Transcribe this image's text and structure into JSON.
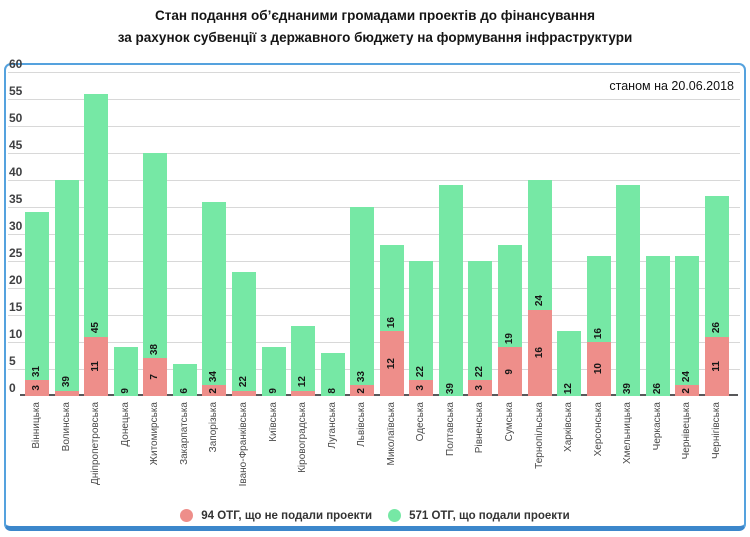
{
  "title": {
    "line1": "Стан подання об’єднаними громадами проектів до фінансування",
    "line2": "за рахунок субвенції з державного бюджету на формування інфраструктури"
  },
  "annotation": "станом на 20.06.2018",
  "colors": {
    "not_submitted": "#EE8E8A",
    "submitted": "#76E8A5",
    "frame_border": "#55A2DE",
    "frame_border_bottom": "#3C87CB",
    "gridline": "#D8D8D8",
    "axis_line": "#58585A"
  },
  "legend": [
    {
      "label": "94 ОТГ, що не подали проекти",
      "color": "#EE8E8A"
    },
    {
      "label": "571 ОТГ, що подали проекти",
      "color": "#76E8A5"
    }
  ],
  "chart_data": {
    "type": "bar",
    "stacked": true,
    "title": "Стан подання об’єднаними громадами проектів до фінансування за рахунок субвенції з державного бюджету на формування інфраструктури",
    "annotation": "станом на 20.06.2018",
    "categories": [
      "Вінницька",
      "Волинська",
      "Дніпропетровська",
      "Донецька",
      "Житомирська",
      "Закарпатська",
      "Запорізька",
      "Івано-Франківська",
      "Київська",
      "Кіровоградська",
      "Луганська",
      "Львівська",
      "Миколаївська",
      "Одеська",
      "Полтавська",
      "Рівненська",
      "Сумська",
      "Тернопільська",
      "Харківська",
      "Херсонська",
      "Хмельницька",
      "Черкаська",
      "Чернівецька",
      "Чернігівська"
    ],
    "series": [
      {
        "name": "94 ОТГ, що не подали проекти",
        "color": "#EE8E8A",
        "values": [
          3,
          1,
          11,
          0,
          7,
          0,
          2,
          1,
          0,
          1,
          0,
          2,
          12,
          3,
          0,
          3,
          9,
          16,
          0,
          10,
          0,
          0,
          2,
          11
        ]
      },
      {
        "name": "571 ОТГ, що подали проекти",
        "color": "#76E8A5",
        "values": [
          31,
          39,
          45,
          9,
          38,
          6,
          34,
          22,
          9,
          12,
          8,
          33,
          16,
          22,
          39,
          22,
          19,
          24,
          12,
          16,
          39,
          26,
          24,
          26
        ]
      }
    ],
    "ylim": [
      0,
      60
    ],
    "ytick_step": 5,
    "yticks": [
      0,
      5,
      10,
      15,
      20,
      25,
      30,
      35,
      40,
      45,
      50,
      55,
      60
    ],
    "grid": true,
    "legend_position": "bottom",
    "value_labels": "rotated, red label hidden when value < 2"
  }
}
